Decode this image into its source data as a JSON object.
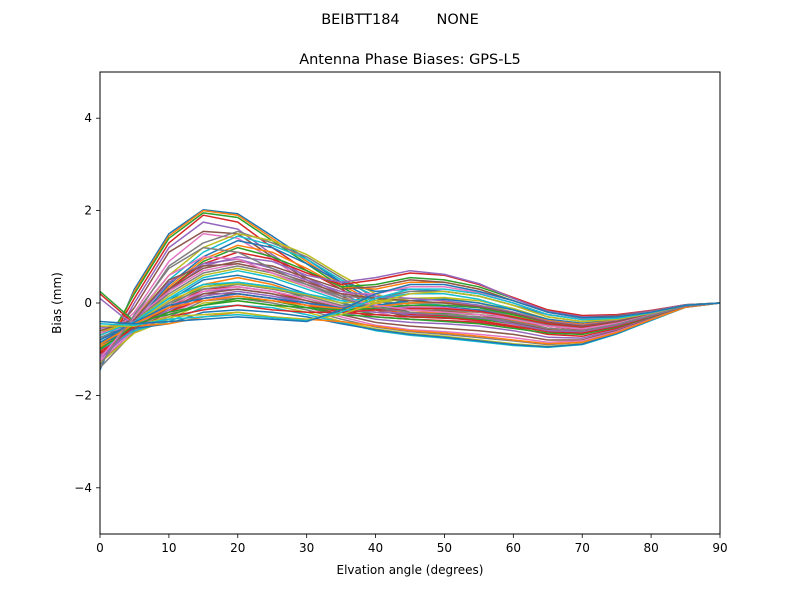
{
  "suptitle": "BEIBTT184        NONE",
  "chart_data": {
    "type": "line",
    "title": "Antenna Phase Biases: GPS-L5",
    "xlabel": "Elvation angle (degrees)",
    "ylabel": "Bias (mm)",
    "xlim": [
      0,
      90
    ],
    "ylim": [
      -5,
      5
    ],
    "xticks": [
      0,
      10,
      20,
      30,
      40,
      50,
      60,
      70,
      80,
      90
    ],
    "xtick_labels": [
      "0",
      "10",
      "20",
      "30",
      "40",
      "50",
      "60",
      "70",
      "80",
      "90"
    ],
    "yticks": [
      -4,
      -2,
      0,
      2,
      4
    ],
    "ytick_labels": [
      "−4",
      "−2",
      "0",
      "2",
      "4"
    ],
    "grid": false,
    "legend": "none",
    "colors": [
      "#1f77b4",
      "#ff7f0e",
      "#2ca02c",
      "#d62728",
      "#9467bd",
      "#8c564b",
      "#e377c2",
      "#7f7f7f",
      "#bcbd22",
      "#17becf"
    ],
    "x": [
      0,
      5,
      10,
      15,
      20,
      25,
      30,
      35,
      40,
      45,
      50,
      55,
      60,
      65,
      70,
      75,
      80,
      85,
      90
    ],
    "series": [
      {
        "values": [
          -1.45,
          0.3,
          1.5,
          2.02,
          1.93,
          1.45,
          0.95,
          0.45,
          0.05,
          -0.1,
          -0.12,
          -0.15,
          -0.25,
          -0.4,
          -0.45,
          -0.35,
          -0.2,
          -0.05,
          0.0
        ]
      },
      {
        "values": [
          -1.35,
          0.25,
          1.45,
          2.0,
          1.9,
          1.4,
          0.9,
          0.4,
          0.0,
          -0.15,
          -0.18,
          -0.2,
          -0.3,
          -0.45,
          -0.5,
          -0.38,
          -0.22,
          -0.05,
          0.0
        ]
      },
      {
        "values": [
          -1.1,
          0.2,
          1.4,
          1.95,
          1.85,
          1.35,
          0.85,
          0.35,
          -0.05,
          -0.2,
          -0.22,
          -0.25,
          -0.32,
          -0.48,
          -0.55,
          -0.42,
          -0.25,
          -0.06,
          0.0
        ]
      },
      {
        "values": [
          -1.2,
          0.1,
          1.3,
          1.9,
          1.75,
          1.2,
          0.7,
          0.3,
          -0.1,
          -0.25,
          -0.28,
          -0.3,
          -0.38,
          -0.5,
          -0.58,
          -0.45,
          -0.26,
          -0.06,
          0.0
        ]
      },
      {
        "values": [
          -1.3,
          0.0,
          1.2,
          1.75,
          1.6,
          1.05,
          0.55,
          0.2,
          -0.12,
          -0.28,
          -0.3,
          -0.33,
          -0.4,
          -0.55,
          -0.6,
          -0.46,
          -0.27,
          -0.06,
          0.0
        ]
      },
      {
        "values": [
          -1.0,
          -0.1,
          1.1,
          1.55,
          1.5,
          1.0,
          0.5,
          0.15,
          -0.15,
          -0.3,
          -0.33,
          -0.36,
          -0.42,
          -0.58,
          -0.62,
          -0.48,
          -0.28,
          -0.07,
          0.0
        ]
      },
      {
        "values": [
          -0.9,
          -0.2,
          0.9,
          1.5,
          1.4,
          0.95,
          0.45,
          0.1,
          -0.2,
          -0.35,
          -0.38,
          -0.4,
          -0.48,
          -0.6,
          -0.64,
          -0.5,
          -0.29,
          -0.07,
          0.0
        ]
      },
      {
        "values": [
          -0.8,
          -0.3,
          0.8,
          1.3,
          1.55,
          1.3,
          1.0,
          0.55,
          0.1,
          -0.1,
          -0.15,
          -0.2,
          -0.3,
          -0.45,
          -0.5,
          -0.4,
          -0.24,
          -0.06,
          0.0
        ]
      },
      {
        "values": [
          -0.7,
          -0.35,
          0.6,
          1.2,
          1.5,
          1.35,
          1.05,
          0.6,
          0.2,
          -0.05,
          -0.1,
          -0.15,
          -0.28,
          -0.42,
          -0.48,
          -0.38,
          -0.23,
          -0.06,
          0.0
        ]
      },
      {
        "values": [
          -0.9,
          -0.4,
          0.5,
          1.1,
          1.45,
          1.25,
          0.95,
          0.5,
          0.15,
          0.0,
          -0.05,
          -0.1,
          -0.25,
          -0.4,
          -0.46,
          -0.36,
          -0.22,
          -0.05,
          0.0
        ]
      },
      {
        "values": [
          -0.75,
          -0.45,
          0.4,
          1.0,
          1.35,
          1.2,
          0.85,
          0.45,
          0.25,
          0.3,
          0.25,
          0.15,
          -0.05,
          -0.25,
          -0.35,
          -0.3,
          -0.2,
          -0.05,
          0.0
        ]
      },
      {
        "values": [
          -0.85,
          -0.5,
          0.35,
          0.95,
          1.25,
          1.1,
          0.75,
          0.35,
          0.3,
          0.45,
          0.45,
          0.3,
          0.05,
          -0.2,
          -0.3,
          -0.28,
          -0.18,
          -0.05,
          0.0
        ]
      },
      {
        "values": [
          -0.95,
          -0.48,
          0.3,
          0.9,
          1.2,
          1.0,
          0.7,
          0.35,
          0.4,
          0.55,
          0.5,
          0.35,
          0.1,
          -0.15,
          -0.28,
          -0.26,
          -0.17,
          -0.04,
          0.0
        ]
      },
      {
        "values": [
          -1.05,
          -0.5,
          0.3,
          0.85,
          1.1,
          0.95,
          0.65,
          0.4,
          0.5,
          0.65,
          0.6,
          0.4,
          0.12,
          -0.15,
          -0.27,
          -0.25,
          -0.16,
          -0.04,
          0.0
        ]
      },
      {
        "values": [
          -1.15,
          -0.55,
          0.25,
          0.8,
          1.0,
          0.9,
          0.6,
          0.45,
          0.55,
          0.7,
          0.62,
          0.42,
          0.1,
          -0.18,
          -0.3,
          -0.27,
          -0.17,
          -0.04,
          0.0
        ]
      },
      {
        "values": [
          -0.6,
          -0.4,
          0.3,
          0.75,
          0.9,
          0.8,
          0.55,
          0.3,
          0.35,
          0.5,
          0.45,
          0.3,
          0.05,
          -0.2,
          -0.32,
          -0.28,
          -0.18,
          -0.05,
          0.0
        ]
      },
      {
        "values": [
          -0.55,
          -0.35,
          0.25,
          0.7,
          0.85,
          0.7,
          0.45,
          0.2,
          0.2,
          0.35,
          0.35,
          0.22,
          0.0,
          -0.25,
          -0.35,
          -0.3,
          -0.19,
          -0.05,
          0.0
        ]
      },
      {
        "values": [
          -0.65,
          -0.38,
          0.2,
          0.65,
          0.8,
          0.65,
          0.4,
          0.15,
          0.1,
          0.25,
          0.25,
          0.15,
          -0.05,
          -0.3,
          -0.4,
          -0.32,
          -0.2,
          -0.05,
          0.0
        ]
      },
      {
        "values": [
          -0.7,
          -0.4,
          0.15,
          0.6,
          0.75,
          0.6,
          0.35,
          0.1,
          0.0,
          0.1,
          0.12,
          0.05,
          -0.12,
          -0.35,
          -0.45,
          -0.36,
          -0.22,
          -0.05,
          0.0
        ]
      },
      {
        "values": [
          -0.8,
          -0.42,
          0.1,
          0.55,
          0.7,
          0.55,
          0.3,
          0.05,
          -0.1,
          0.0,
          0.02,
          -0.05,
          -0.2,
          -0.4,
          -0.5,
          -0.4,
          -0.24,
          -0.06,
          0.0
        ]
      },
      {
        "values": [
          -0.85,
          -0.45,
          0.05,
          0.5,
          0.6,
          0.45,
          0.2,
          0.0,
          -0.15,
          -0.1,
          -0.08,
          -0.15,
          -0.3,
          -0.48,
          -0.56,
          -0.44,
          -0.26,
          -0.06,
          0.0
        ]
      },
      {
        "values": [
          -0.95,
          -0.48,
          0.0,
          0.4,
          0.55,
          0.4,
          0.15,
          -0.05,
          -0.2,
          -0.2,
          -0.2,
          -0.25,
          -0.38,
          -0.55,
          -0.62,
          -0.48,
          -0.28,
          -0.07,
          0.0
        ]
      },
      {
        "values": [
          -1.0,
          -0.5,
          -0.05,
          0.35,
          0.45,
          0.35,
          0.1,
          -0.1,
          -0.25,
          -0.3,
          -0.3,
          -0.35,
          -0.45,
          -0.62,
          -0.68,
          -0.52,
          -0.3,
          -0.07,
          0.0
        ]
      },
      {
        "values": [
          -1.1,
          -0.52,
          -0.1,
          0.3,
          0.35,
          0.25,
          0.05,
          -0.15,
          -0.3,
          -0.35,
          -0.38,
          -0.42,
          -0.52,
          -0.68,
          -0.72,
          -0.55,
          -0.32,
          -0.08,
          0.0
        ]
      },
      {
        "values": [
          -1.2,
          -0.55,
          -0.15,
          0.25,
          0.3,
          0.2,
          0.0,
          -0.2,
          -0.35,
          -0.42,
          -0.45,
          -0.5,
          -0.6,
          -0.74,
          -0.76,
          -0.58,
          -0.33,
          -0.08,
          0.0
        ]
      },
      {
        "values": [
          -1.3,
          -0.58,
          -0.2,
          0.2,
          0.2,
          0.1,
          -0.05,
          -0.25,
          -0.42,
          -0.5,
          -0.55,
          -0.6,
          -0.68,
          -0.8,
          -0.8,
          -0.6,
          -0.34,
          -0.08,
          0.0
        ]
      },
      {
        "values": [
          -1.25,
          -0.6,
          -0.25,
          0.1,
          0.15,
          0.05,
          -0.1,
          -0.3,
          -0.48,
          -0.58,
          -0.62,
          -0.68,
          -0.75,
          -0.85,
          -0.82,
          -0.62,
          -0.35,
          -0.08,
          0.0
        ]
      },
      {
        "values": [
          -1.4,
          -0.62,
          -0.3,
          0.05,
          0.1,
          0.0,
          -0.15,
          -0.35,
          -0.52,
          -0.62,
          -0.68,
          -0.75,
          -0.82,
          -0.9,
          -0.85,
          -0.64,
          -0.36,
          -0.09,
          0.0
        ]
      },
      {
        "values": [
          -1.3,
          -0.65,
          -0.35,
          0.0,
          0.05,
          -0.05,
          -0.2,
          -0.4,
          -0.56,
          -0.66,
          -0.72,
          -0.8,
          -0.88,
          -0.94,
          -0.88,
          -0.66,
          -0.37,
          -0.09,
          0.0
        ]
      },
      {
        "values": [
          -1.0,
          -0.6,
          -0.4,
          -0.1,
          -0.05,
          -0.1,
          -0.25,
          -0.42,
          -0.6,
          -0.7,
          -0.76,
          -0.84,
          -0.92,
          -0.96,
          -0.9,
          -0.67,
          -0.38,
          -0.09,
          0.0
        ]
      },
      {
        "values": [
          -0.9,
          -0.55,
          -0.45,
          -0.2,
          -0.15,
          -0.2,
          -0.3,
          -0.45,
          -0.58,
          -0.68,
          -0.74,
          -0.82,
          -0.9,
          -0.95,
          -0.89,
          -0.66,
          -0.37,
          -0.09,
          0.0
        ]
      },
      {
        "values": [
          -0.6,
          -0.5,
          -0.45,
          -0.3,
          -0.2,
          -0.3,
          -0.35,
          -0.4,
          -0.5,
          -0.6,
          -0.65,
          -0.72,
          -0.8,
          -0.88,
          -0.85,
          -0.64,
          -0.36,
          -0.09,
          0.0
        ]
      },
      {
        "values": [
          0.25,
          -0.4,
          -0.25,
          -0.05,
          0.1,
          0.05,
          -0.1,
          -0.25,
          -0.3,
          -0.35,
          -0.4,
          -0.45,
          -0.55,
          -0.65,
          -0.68,
          -0.52,
          -0.3,
          -0.07,
          0.0
        ]
      },
      {
        "values": [
          0.2,
          -0.45,
          -0.2,
          0.1,
          0.2,
          0.1,
          -0.05,
          -0.2,
          -0.25,
          -0.3,
          -0.32,
          -0.38,
          -0.5,
          -0.62,
          -0.65,
          -0.5,
          -0.29,
          -0.07,
          0.0
        ]
      },
      {
        "values": [
          0.1,
          -0.5,
          -0.15,
          0.15,
          0.25,
          0.15,
          0.0,
          -0.15,
          -0.2,
          -0.22,
          -0.25,
          -0.3,
          -0.45,
          -0.6,
          -0.62,
          -0.48,
          -0.28,
          -0.07,
          0.0
        ]
      },
      {
        "values": [
          -0.5,
          -0.55,
          -0.1,
          0.2,
          0.3,
          0.2,
          0.05,
          -0.1,
          -0.15,
          -0.15,
          -0.18,
          -0.25,
          -0.4,
          -0.55,
          -0.6,
          -0.46,
          -0.27,
          -0.06,
          0.0
        ]
      },
      {
        "values": [
          -0.65,
          -0.5,
          -0.05,
          0.25,
          0.35,
          0.25,
          0.1,
          -0.08,
          -0.1,
          -0.08,
          -0.1,
          -0.18,
          -0.35,
          -0.5,
          -0.56,
          -0.44,
          -0.26,
          -0.06,
          0.0
        ]
      },
      {
        "values": [
          -0.75,
          -0.48,
          0.0,
          0.3,
          0.4,
          0.3,
          0.15,
          -0.05,
          -0.05,
          0.0,
          0.0,
          -0.1,
          -0.3,
          -0.48,
          -0.54,
          -0.42,
          -0.25,
          -0.06,
          0.0
        ]
      },
      {
        "values": [
          -0.6,
          -0.45,
          0.05,
          0.35,
          0.42,
          0.32,
          0.18,
          0.0,
          0.05,
          0.1,
          0.1,
          0.0,
          -0.2,
          -0.42,
          -0.5,
          -0.4,
          -0.24,
          -0.06,
          0.0
        ]
      },
      {
        "values": [
          -0.7,
          -0.4,
          0.1,
          0.4,
          0.45,
          0.35,
          0.2,
          0.05,
          0.1,
          0.2,
          0.2,
          0.08,
          -0.15,
          -0.38,
          -0.46,
          -0.38,
          -0.23,
          -0.06,
          0.0
        ]
      },
      {
        "values": [
          -0.8,
          -0.42,
          -0.05,
          0.1,
          0.2,
          0.1,
          0.0,
          -0.1,
          -0.05,
          0.05,
          0.08,
          0.0,
          -0.15,
          -0.35,
          -0.44,
          -0.37,
          -0.22,
          -0.05,
          0.0
        ]
      },
      {
        "values": [
          -0.9,
          -0.45,
          -0.1,
          0.05,
          0.15,
          0.05,
          -0.05,
          -0.12,
          -0.08,
          0.0,
          0.02,
          -0.05,
          -0.2,
          -0.38,
          -0.46,
          -0.38,
          -0.23,
          -0.06,
          0.0
        ]
      },
      {
        "values": [
          -1.0,
          -0.48,
          -0.2,
          -0.05,
          0.05,
          -0.05,
          -0.1,
          -0.15,
          -0.12,
          -0.05,
          -0.05,
          -0.1,
          -0.25,
          -0.42,
          -0.5,
          -0.4,
          -0.24,
          -0.06,
          0.0
        ]
      },
      {
        "values": [
          -1.1,
          -0.5,
          -0.3,
          -0.15,
          -0.05,
          -0.15,
          -0.2,
          -0.2,
          -0.15,
          -0.12,
          -0.12,
          -0.18,
          -0.3,
          -0.45,
          -0.52,
          -0.41,
          -0.24,
          -0.06,
          0.0
        ]
      },
      {
        "values": [
          -0.55,
          -0.38,
          0.45,
          0.85,
          0.95,
          0.75,
          0.5,
          0.25,
          0.15,
          0.1,
          0.05,
          -0.05,
          -0.2,
          -0.4,
          -0.48,
          -0.39,
          -0.23,
          -0.06,
          0.0
        ]
      },
      {
        "values": [
          -0.6,
          -0.36,
          0.5,
          0.8,
          0.85,
          0.7,
          0.45,
          0.2,
          0.1,
          0.05,
          0.0,
          -0.08,
          -0.22,
          -0.42,
          -0.5,
          -0.4,
          -0.24,
          -0.06,
          0.0
        ]
      },
      {
        "values": [
          -1.2,
          -0.3,
          0.6,
          1.0,
          0.95,
          0.65,
          0.35,
          0.1,
          -0.05,
          -0.15,
          -0.2,
          -0.25,
          -0.35,
          -0.5,
          -0.56,
          -0.44,
          -0.26,
          -0.06,
          0.0
        ]
      },
      {
        "values": [
          -1.35,
          -0.25,
          0.75,
          1.2,
          1.1,
          0.75,
          0.4,
          0.1,
          -0.1,
          -0.2,
          -0.25,
          -0.3,
          -0.4,
          -0.55,
          -0.6,
          -0.46,
          -0.27,
          -0.06,
          0.0
        ]
      },
      {
        "values": [
          -0.5,
          -0.5,
          -0.3,
          -0.25,
          -0.2,
          -0.3,
          -0.35,
          -0.25,
          0.0,
          0.2,
          0.25,
          0.15,
          -0.05,
          -0.3,
          -0.4,
          -0.35,
          -0.22,
          -0.05,
          0.0
        ]
      },
      {
        "values": [
          -0.45,
          -0.48,
          -0.35,
          -0.3,
          -0.25,
          -0.32,
          -0.38,
          -0.2,
          0.1,
          0.3,
          0.3,
          0.2,
          0.0,
          -0.25,
          -0.36,
          -0.33,
          -0.21,
          -0.05,
          0.0
        ]
      },
      {
        "values": [
          -0.4,
          -0.45,
          -0.4,
          -0.35,
          -0.3,
          -0.35,
          -0.4,
          -0.15,
          0.2,
          0.4,
          0.4,
          0.25,
          0.05,
          -0.2,
          -0.32,
          -0.3,
          -0.2,
          -0.05,
          0.0
        ]
      }
    ]
  }
}
